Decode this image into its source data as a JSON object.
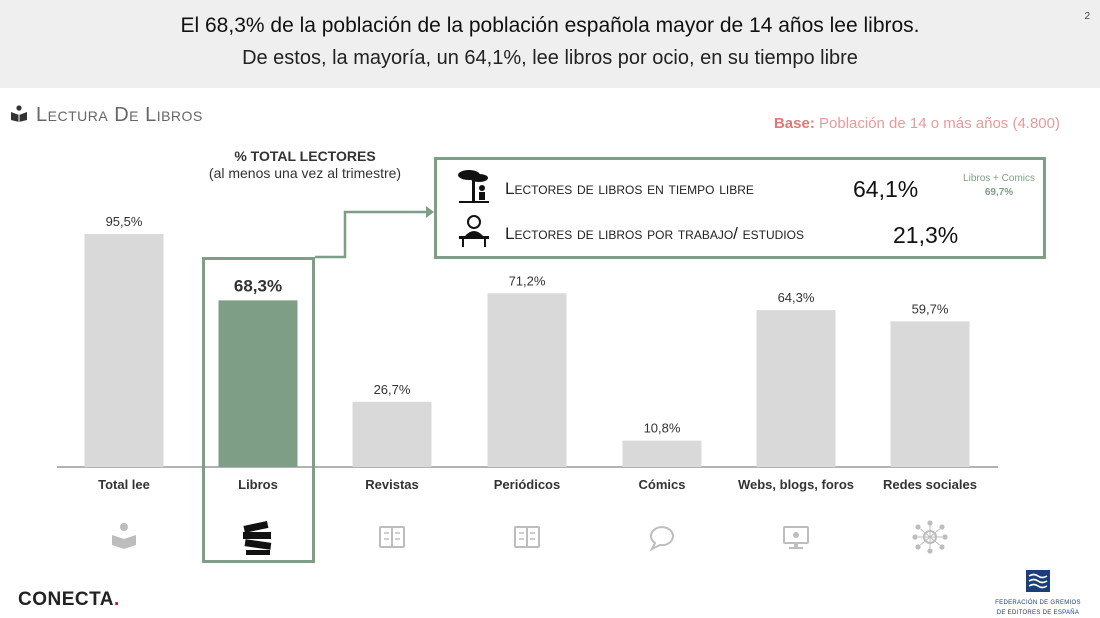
{
  "header": {
    "line1": "El 68,3% de la población de la población española mayor de 14 años lee libros.",
    "line2": "De estos, la mayoría, un 64,1%, lee libros por ocio, en su tiempo libre",
    "page_number": "2"
  },
  "section": {
    "title": "Lectura De Libros",
    "icon": "book-reader-icon"
  },
  "base": {
    "label": "Base:",
    "text": "Población de 14 o más años (4.800)"
  },
  "subtitle": {
    "main": "% TOTAL LECTORES",
    "sub": "(al menos una vez al trimestre)"
  },
  "callout": {
    "row1_label": "Lectores de libros en tiempo libre",
    "row1_value": "64,1%",
    "row1_icon": "tree-reader-icon",
    "row2_label": "Lectores de libros por trabajo/ estudios",
    "row2_value": "21,3%",
    "row2_icon": "desk-student-icon",
    "combo_label": "Libros + Comics",
    "combo_value": "69,7%"
  },
  "colors": {
    "bar_default": "#d9d9d9",
    "bar_highlight": "#7f9e86",
    "accent": "#7f9e86",
    "base_red": "#e07878",
    "icon_grey": "#bdbdbd"
  },
  "chart_data": {
    "type": "bar",
    "title": "% TOTAL LECTORES",
    "categories": [
      "Total lee",
      "Libros",
      "Revistas",
      "Periódicos",
      "Cómics",
      "Webs, blogs, foros",
      "Redes sociales"
    ],
    "values": [
      95.5,
      68.3,
      26.7,
      71.2,
      10.8,
      64.3,
      59.7
    ],
    "value_labels": [
      "95,5%",
      "68,3%",
      "26,7%",
      "71,2%",
      "10,8%",
      "64,3%",
      "59,7%"
    ],
    "highlight_index": 1,
    "icons": [
      "reader-icon",
      "books-stack-icon",
      "magazine-icon",
      "newspaper-icon",
      "speech-bubble-icon",
      "monitor-icon",
      "social-network-icon"
    ],
    "ylim": [
      0,
      100
    ],
    "grid": false,
    "legend": "none"
  },
  "footer": {
    "conecta": "CONECTA",
    "conecta_dot": ".",
    "federacion_line1": "FEDERACIÓN DE GREMIOS",
    "federacion_line2": "DE EDITORES DE ESPAÑA"
  }
}
